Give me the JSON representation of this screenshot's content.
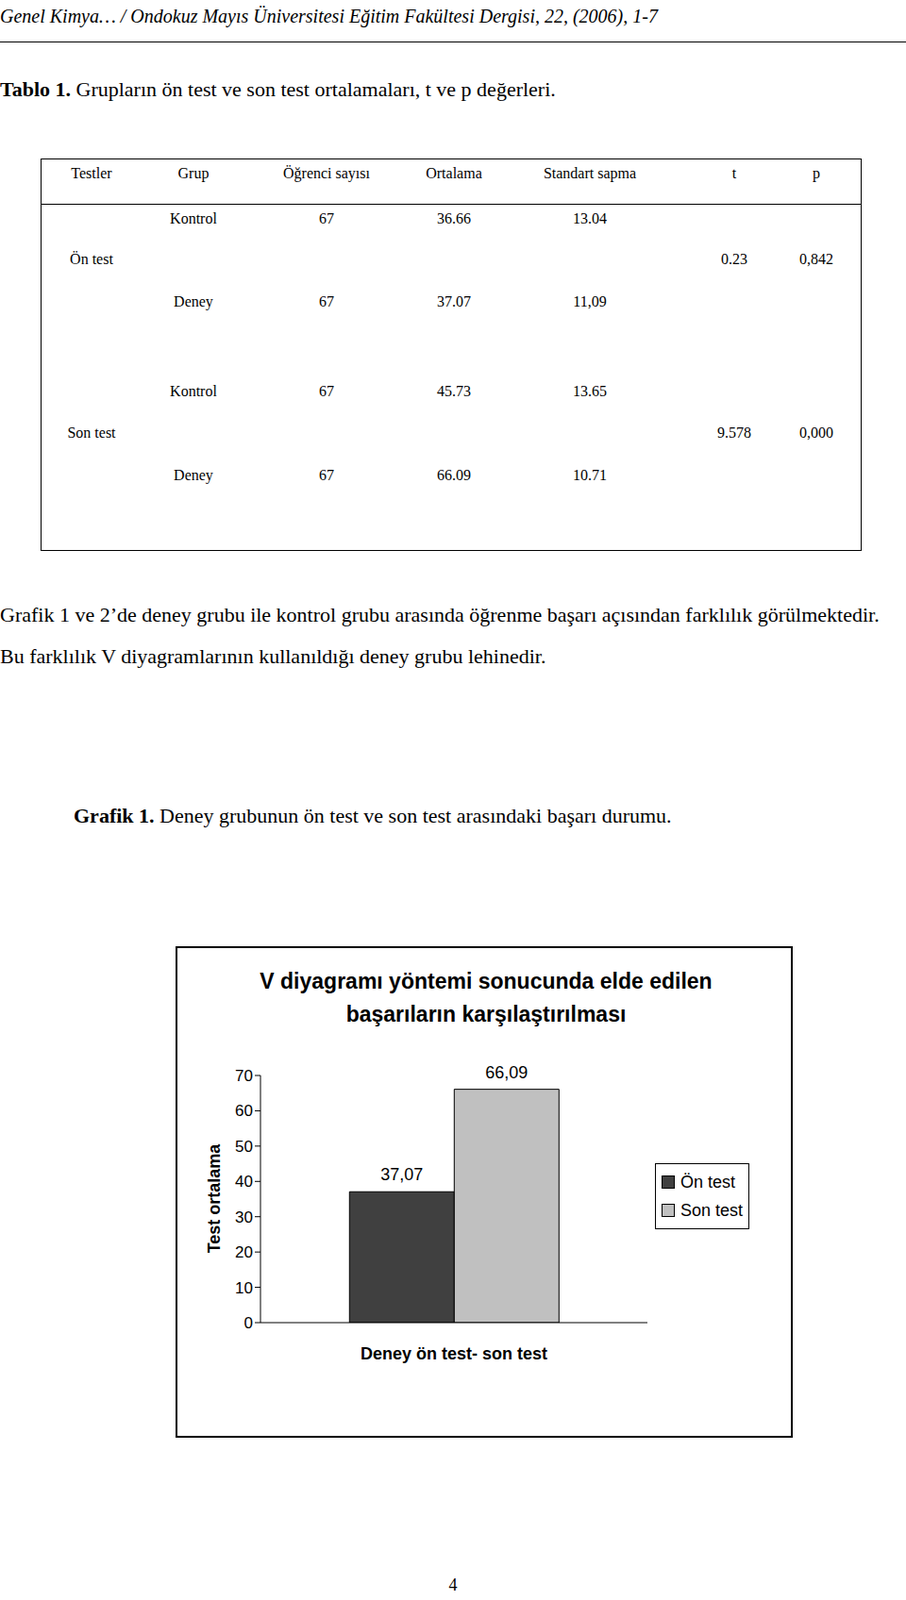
{
  "header": {
    "running_head": "Genel Kimya… / Ondokuz Mayıs Üniversitesi Eğitim Fakültesi Dergisi, 22, (2006), 1-7"
  },
  "table": {
    "caption_label": "Tablo 1.",
    "caption": "Grupların ön test ve son test ortalamaları, t ve p değerleri.",
    "columns": [
      "Testler",
      "Grup",
      "Öğrenci sayısı",
      "Ortalama",
      "Standart sapma",
      "t",
      "p"
    ],
    "blocks": [
      {
        "test": "Ön test",
        "t": "0.23",
        "p": "0,842",
        "rows": [
          {
            "group": "Kontrol",
            "n": "67",
            "mean": "36.66",
            "sd": "13.04"
          },
          {
            "group": "Deney",
            "n": "67",
            "mean": "37.07",
            "sd": "11,09"
          }
        ]
      },
      {
        "test": "Son test",
        "t": "9.578",
        "p": "0,000",
        "rows": [
          {
            "group": "Kontrol",
            "n": "67",
            "mean": "45.73",
            "sd": "13.65"
          },
          {
            "group": "Deney",
            "n": "67",
            "mean": "66.09",
            "sd": "10.71"
          }
        ]
      }
    ]
  },
  "paragraph": "Grafik 1 ve 2’de deney grubu ile kontrol grubu arasında öğrenme başarı açısından farklılık görülmektedir. Bu farklılık V diyagramlarının kullanıldığı deney grubu lehinedir.",
  "figure": {
    "label": "Grafik 1.",
    "caption": "Deney grubunun ön test ve son test arasındaki başarı durumu."
  },
  "chart_data": {
    "type": "bar",
    "title": "V diyagramı yöntemi sonucunda elde edilen başarıların karşılaştırılması",
    "y_label": "Test ortalama",
    "categories": [
      "Deney ön test- son test"
    ],
    "series": [
      {
        "name": "Ön test",
        "color": "#404040",
        "values": [
          37.07
        ],
        "value_labels": [
          "37,07"
        ]
      },
      {
        "name": "Son test",
        "color": "#c0c0c0",
        "values": [
          66.09
        ],
        "value_labels": [
          "66,09"
        ]
      }
    ],
    "ylim": [
      0,
      70
    ],
    "yticks": [
      0,
      10,
      20,
      30,
      40,
      50,
      60,
      70
    ],
    "grid": false,
    "legend": "right",
    "data_labels": true
  },
  "page_number": "4"
}
